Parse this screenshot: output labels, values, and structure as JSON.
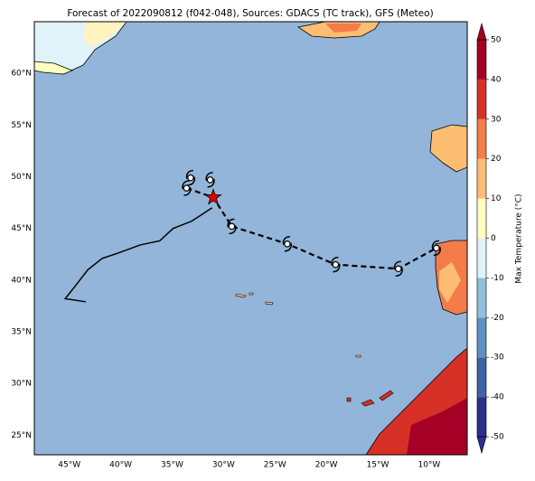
{
  "title": "Forecast of 2022090812 (f042-048), Sources: GDACS (TC track), GFS (Meteo)",
  "map": {
    "lonlim": [
      -48.4,
      -6.3
    ],
    "latlim": [
      23.1,
      65
    ],
    "lonticks": [
      {
        "value": -45,
        "label": "45°W"
      },
      {
        "value": -40,
        "label": "40°W"
      },
      {
        "value": -35,
        "label": "35°W"
      },
      {
        "value": -30,
        "label": "30°W"
      },
      {
        "value": -25,
        "label": "25°W"
      },
      {
        "value": -20,
        "label": "20°W"
      },
      {
        "value": -15,
        "label": "15°W"
      },
      {
        "value": -10,
        "label": "10°W"
      }
    ],
    "latticks": [
      {
        "value": 25,
        "label": "25°N"
      },
      {
        "value": 30,
        "label": "30°N"
      },
      {
        "value": 35,
        "label": "35°N"
      },
      {
        "value": 40,
        "label": "40°N"
      },
      {
        "value": 45,
        "label": "45°N"
      },
      {
        "value": 50,
        "label": "50°N"
      },
      {
        "value": 55,
        "label": "55°N"
      },
      {
        "value": 60,
        "label": "60°N"
      }
    ]
  },
  "track": {
    "past": {
      "lon": [
        -31.1,
        -33.1,
        -34.9,
        -36.2,
        -38.1,
        -40.3,
        -41.8,
        -43.2,
        -44.6,
        -45.4,
        -43.4
      ],
      "lat": [
        47.0,
        45.7,
        45.0,
        43.8,
        43.4,
        42.6,
        42.1,
        41.0,
        39.2,
        38.2,
        37.9
      ]
    },
    "forecast": {
      "lon": [
        -33.6,
        -31.0,
        -29.2,
        -23.8,
        -19.1,
        -13.0,
        -9.3
      ],
      "lat": [
        48.9,
        48.0,
        45.2,
        43.5,
        41.5,
        41.1,
        43.1
      ]
    },
    "symbols": {
      "lon": [
        -33.2,
        -31.3,
        -33.6,
        -29.2,
        -23.8,
        -19.1,
        -13.0,
        -9.3
      ],
      "lat": [
        49.9,
        49.7,
        48.9,
        45.2,
        43.5,
        41.5,
        41.1,
        43.1
      ]
    },
    "current": {
      "lon": -31.0,
      "lat": 48.0,
      "color": "#e00000"
    }
  },
  "colorbar": {
    "label": "Max Temperature (°C)",
    "lim": [
      -50,
      50
    ],
    "ticks": [
      -50,
      -40,
      -30,
      -20,
      -10,
      0,
      10,
      20,
      30,
      40,
      50
    ],
    "colors": [
      "#2c2f8e",
      "#3d62a8",
      "#5f90c3",
      "#92bfdb",
      "#e0f3f8",
      "#ffffbf",
      "#fdbe73",
      "#f37c4a",
      "#d73027",
      "#a50026"
    ]
  }
}
